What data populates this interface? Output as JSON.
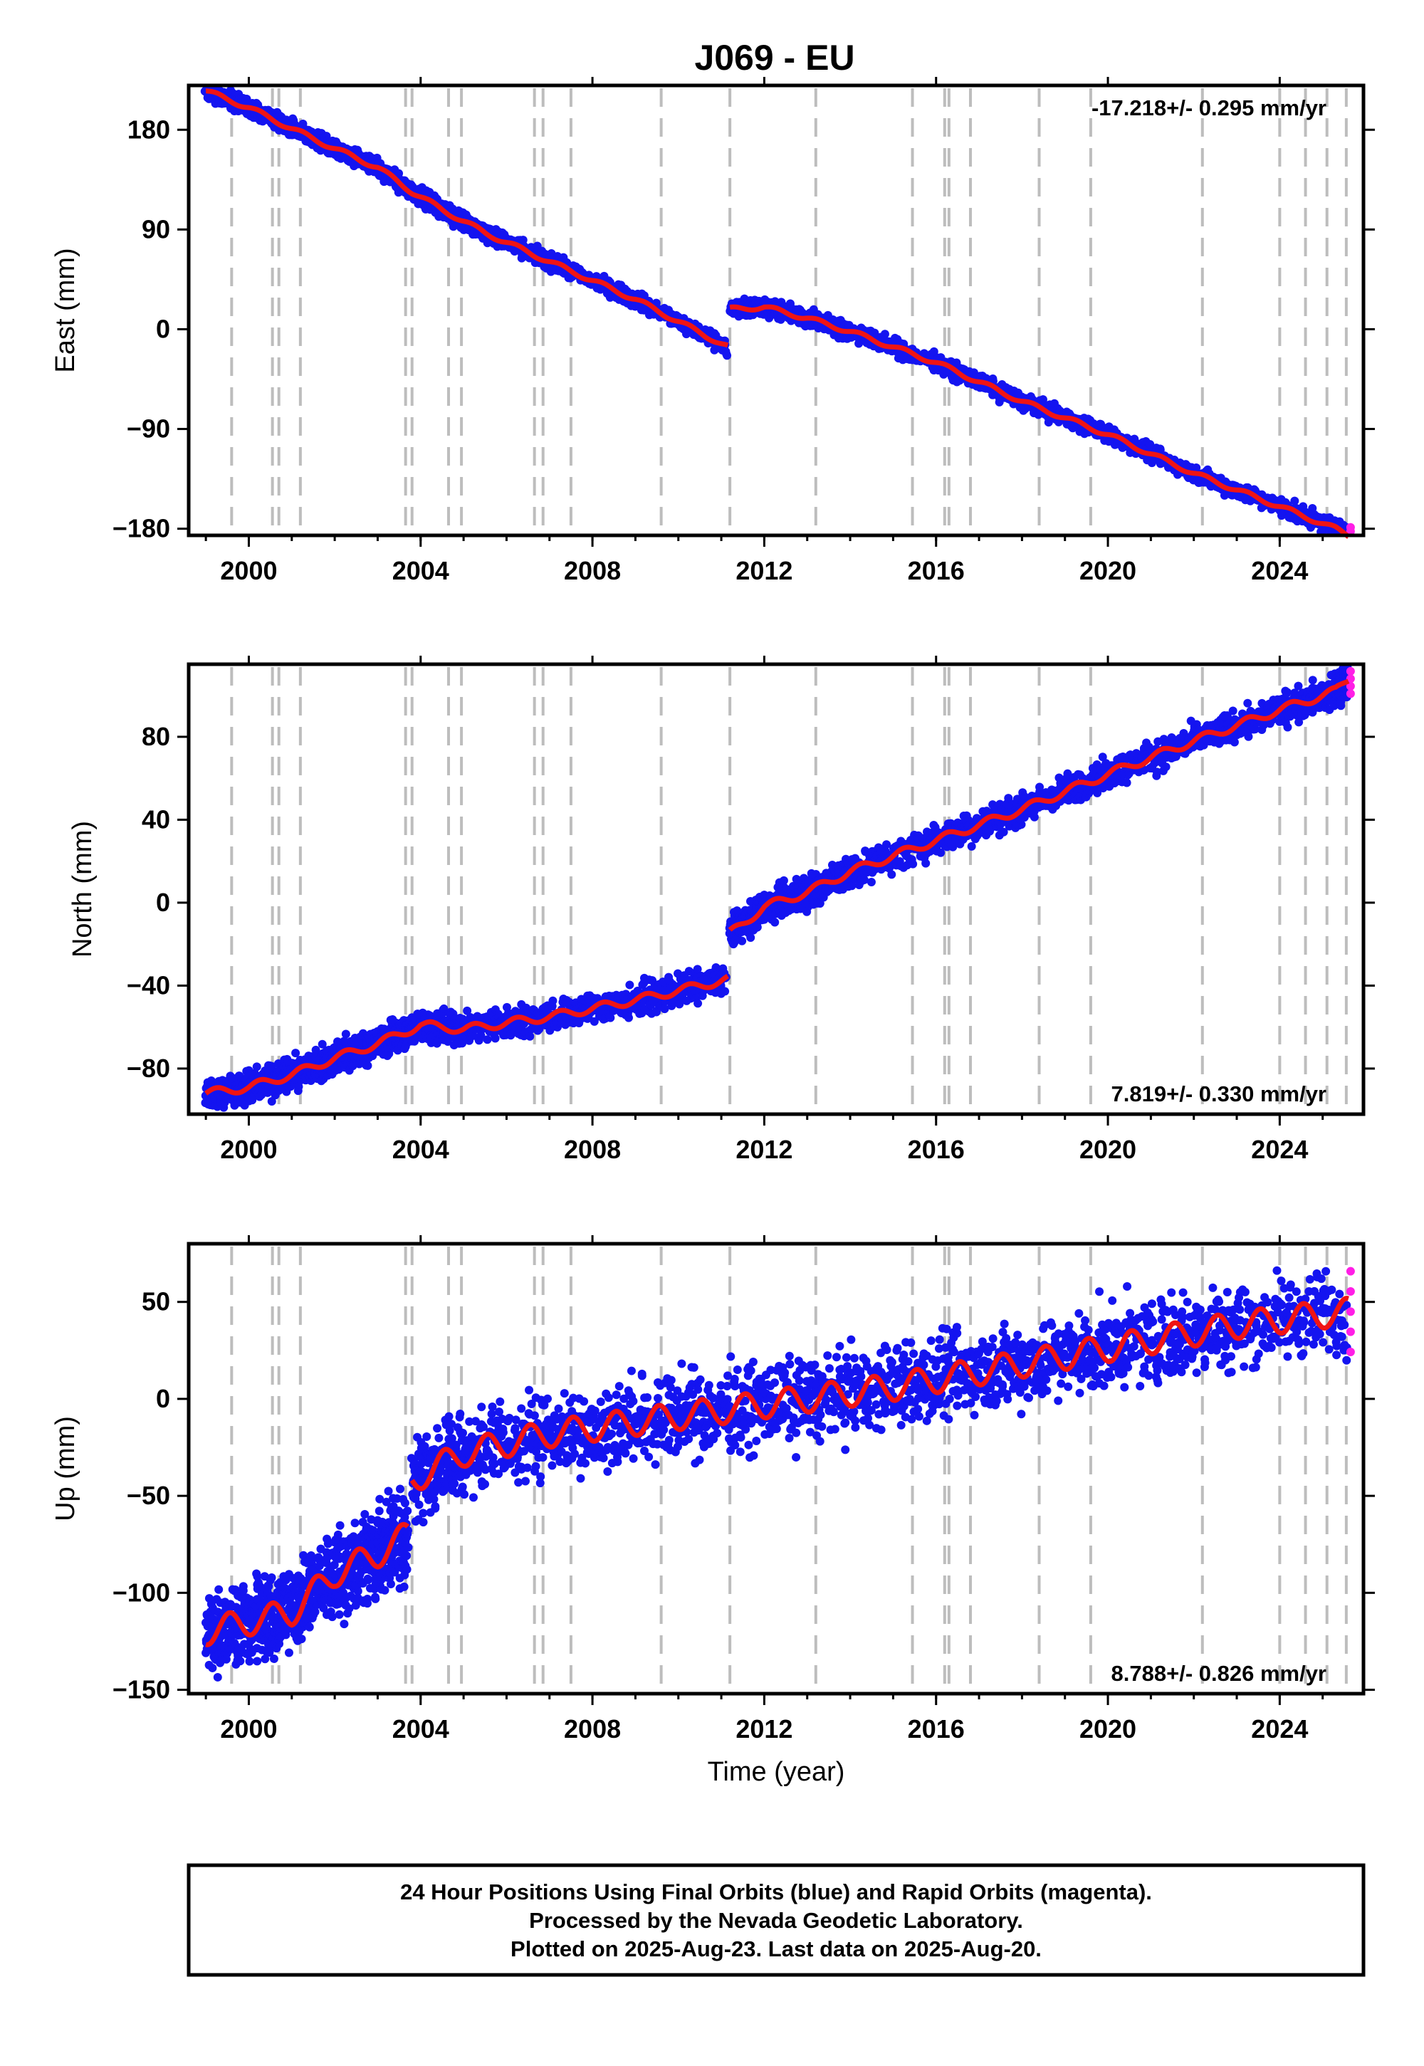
{
  "title": "J069 - EU",
  "footer": {
    "lines": [
      "24 Hour Positions Using Final Orbits (blue) and Rapid Orbits (magenta).",
      "Processed by the Nevada Geodetic Laboratory.",
      "Plotted on 2025-Aug-23. Last data on 2025-Aug-20."
    ]
  },
  "colors": {
    "final_orbits": "#1414f0",
    "rapid_orbits": "#ff1ee6",
    "model": "#f01414",
    "event_lines": "#bdbdbd"
  },
  "chart_data": [
    {
      "type": "scatter",
      "panel": "east",
      "ylabel": "East (mm)",
      "xlabel": "",
      "xlim": [
        1998.6,
        2025.95
      ],
      "ylim": [
        -186,
        220
      ],
      "xticks": [
        2000,
        2004,
        2008,
        2012,
        2016,
        2020,
        2024
      ],
      "xtick_labels": [
        "2000",
        "2004",
        "2008",
        "2012",
        "2016",
        "2020",
        "2024"
      ],
      "yticks": [
        -180,
        -90,
        0,
        90,
        180
      ],
      "ytick_labels": [
        "−180",
        "−90",
        "0",
        "90",
        "180"
      ],
      "rate_label": "-17.218+/- 0.295 mm/yr",
      "rate_position": "top-right",
      "series": [
        {
          "x": [
            1999.0,
            2000.0,
            2001.0,
            2002.0,
            2003.0,
            2003.8,
            2004.5,
            2005.5,
            2007.0,
            2009.0,
            2011.15
          ],
          "y": [
            215,
            200,
            181,
            163,
            146,
            124,
            108,
            87,
            61,
            27,
            -16
          ]
        },
        {
          "x": [
            2011.2,
            2012.0,
            2013.0,
            2014.0,
            2016.0,
            2018.0,
            2020.0,
            2022.0,
            2024.0,
            2025.3,
            2025.6
          ],
          "y": [
            18,
            20,
            10,
            -2,
            -30,
            -65,
            -95,
            -130,
            -160,
            -180,
            -186
          ]
        }
      ]
    },
    {
      "type": "scatter",
      "panel": "north",
      "ylabel": "North (mm)",
      "xlabel": "",
      "xlim": [
        1998.6,
        2025.95
      ],
      "ylim": [
        -102,
        115
      ],
      "xticks": [
        2000,
        2004,
        2008,
        2012,
        2016,
        2020,
        2024
      ],
      "xtick_labels": [
        "2000",
        "2004",
        "2008",
        "2012",
        "2016",
        "2020",
        "2024"
      ],
      "yticks": [
        -80,
        -40,
        0,
        40,
        80
      ],
      "ytick_labels": [
        "−80",
        "−40",
        "0",
        "40",
        "80"
      ],
      "rate_label": "7.819+/- 0.330 mm/yr",
      "rate_position": "bottom-right",
      "series": [
        {
          "x": [
            1999.0,
            2000.0,
            2001.0,
            2002.0,
            2003.0,
            2004.0,
            2005.0,
            2007.0,
            2009.0,
            2011.15
          ],
          "y": [
            -92,
            -89,
            -83,
            -75,
            -68,
            -59,
            -61,
            -55,
            -47,
            -37
          ]
        },
        {
          "x": [
            2011.2,
            2012.0,
            2013.0,
            2014.0,
            2016.0,
            2018.0,
            2020.0,
            2022.0,
            2024.0,
            2025.3,
            2025.6
          ],
          "y": [
            -15,
            -2,
            5,
            15,
            30,
            45,
            62,
            78,
            93,
            102,
            108
          ]
        }
      ]
    },
    {
      "type": "scatter",
      "panel": "up",
      "ylabel": "Up (mm)",
      "xlabel": "Time (year)",
      "xlim": [
        1998.6,
        2025.95
      ],
      "ylim": [
        -152,
        80
      ],
      "xticks": [
        2000,
        2004,
        2008,
        2012,
        2016,
        2020,
        2024
      ],
      "xtick_labels": [
        "2000",
        "2004",
        "2008",
        "2012",
        "2016",
        "2020",
        "2024"
      ],
      "yticks": [
        -150,
        -100,
        -50,
        0,
        50
      ],
      "ytick_labels": [
        "−150",
        "−100",
        "−50",
        "0",
        "50"
      ],
      "rate_label": "8.788+/- 0.826 mm/yr",
      "rate_position": "bottom-right",
      "series": [
        {
          "x": [
            1999.0,
            2000.0,
            2001.0,
            2002.0,
            2003.0,
            2003.7
          ],
          "y": [
            -120,
            -115,
            -110,
            -90,
            -80,
            -70
          ]
        },
        {
          "x": [
            2003.8,
            2005.0,
            2007.0,
            2009.0,
            2011.0,
            2013.0,
            2015.0,
            2017.0,
            2019.0,
            2021.0,
            2023.0,
            2025.6
          ],
          "y": [
            -42,
            -28,
            -18,
            -12,
            -6,
            0,
            6,
            14,
            22,
            30,
            38,
            45
          ]
        }
      ]
    }
  ]
}
